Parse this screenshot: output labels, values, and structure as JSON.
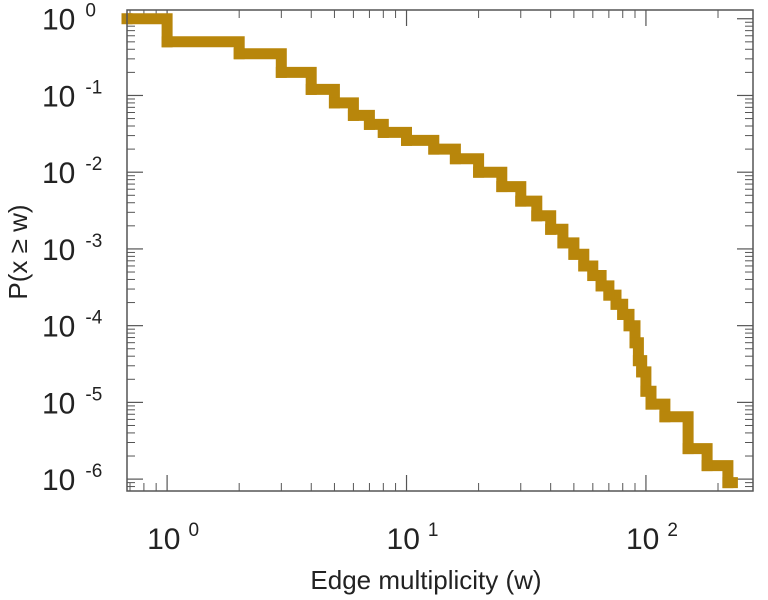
{
  "chart_data": {
    "type": "line",
    "subtype": "step",
    "title": "",
    "xlabel": "Edge multiplicity (w)",
    "ylabel": "P(x ≥ w)",
    "xscale": "log",
    "yscale": "log",
    "xlim": [
      0.68,
      280
    ],
    "ylim": [
      7e-07,
      1.3
    ],
    "grid": false,
    "legend": "none",
    "series_color": "#b8860b",
    "x_ticks": [
      {
        "base": "10",
        "exp": "0",
        "value": 1
      },
      {
        "base": "10",
        "exp": "1",
        "value": 10
      },
      {
        "base": "10",
        "exp": "2",
        "value": 100
      }
    ],
    "y_ticks": [
      {
        "base": "10",
        "exp": "0",
        "value": 1
      },
      {
        "base": "10",
        "exp": "-1",
        "value": 0.1
      },
      {
        "base": "10",
        "exp": "-2",
        "value": 0.01
      },
      {
        "base": "10",
        "exp": "-3",
        "value": 0.001
      },
      {
        "base": "10",
        "exp": "-4",
        "value": 0.0001
      },
      {
        "base": "10",
        "exp": "-5",
        "value": 1e-05
      },
      {
        "base": "10",
        "exp": "-6",
        "value": 1e-06
      }
    ],
    "series": [
      {
        "x": [
          0.68,
          1,
          2,
          3,
          4,
          5,
          6,
          7,
          8,
          10,
          13,
          16,
          20,
          25,
          30,
          35,
          40,
          45,
          50,
          55,
          60,
          65,
          70,
          75,
          80,
          85,
          90,
          93,
          96,
          100,
          105,
          120,
          150,
          180,
          220
        ],
        "y": [
          1,
          0.5,
          0.35,
          0.2,
          0.12,
          0.08,
          0.055,
          0.042,
          0.033,
          0.026,
          0.02,
          0.015,
          0.01,
          0.0065,
          0.0042,
          0.0027,
          0.0018,
          0.0012,
          0.00085,
          0.0006,
          0.00045,
          0.00033,
          0.00025,
          0.00019,
          0.00014,
          0.0001,
          6e-05,
          3.5e-05,
          2.5e-05,
          1.4e-05,
          9.5e-06,
          6.5e-06,
          2.5e-06,
          1.5e-06,
          9e-07
        ]
      }
    ]
  }
}
